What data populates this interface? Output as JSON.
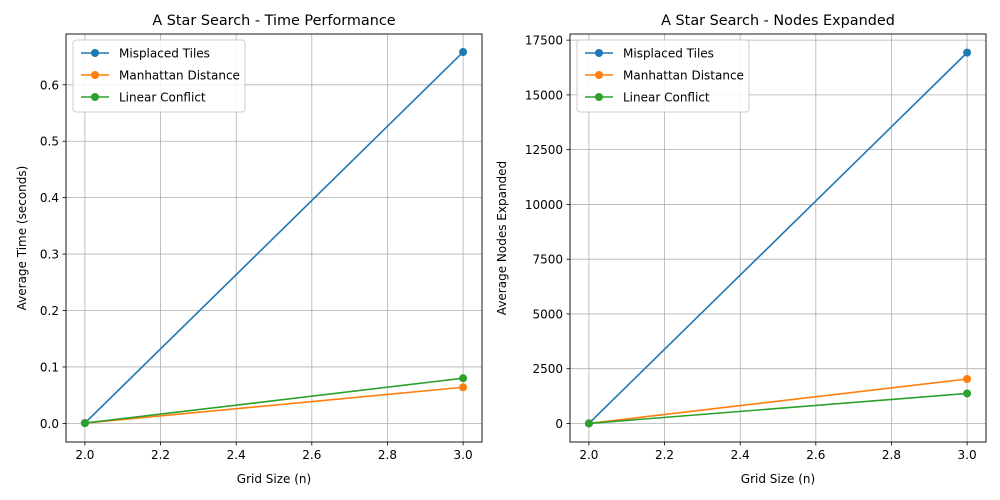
{
  "chart_data": [
    {
      "type": "line",
      "title": "A Star Search - Time Performance",
      "xlabel": "Grid Size (n)",
      "ylabel": "Average Time (seconds)",
      "xlim": [
        1.95,
        3.05
      ],
      "ylim": [
        -0.033,
        0.69
      ],
      "xticks": [
        2.0,
        2.2,
        2.4,
        2.6,
        2.8,
        3.0
      ],
      "xtick_labels": [
        "2.0",
        "2.2",
        "2.4",
        "2.6",
        "2.8",
        "3.0"
      ],
      "yticks": [
        0.0,
        0.1,
        0.2,
        0.3,
        0.4,
        0.5,
        0.6
      ],
      "ytick_labels": [
        "0.0",
        "0.1",
        "0.2",
        "0.3",
        "0.4",
        "0.5",
        "0.6"
      ],
      "grid": true,
      "legend_position": "top-left",
      "x": [
        2,
        3
      ],
      "series": [
        {
          "name": "Misplaced Tiles",
          "values": [
            0.0005,
            0.658
          ],
          "color": "#1f77b4"
        },
        {
          "name": "Manhattan Distance",
          "values": [
            0.0005,
            0.064
          ],
          "color": "#ff7f0e"
        },
        {
          "name": "Linear Conflict",
          "values": [
            0.0005,
            0.08
          ],
          "color": "#2ca02c"
        }
      ]
    },
    {
      "type": "line",
      "title": "A Star Search - Nodes Expanded",
      "xlabel": "Grid Size (n)",
      "ylabel": "Average Nodes Expanded",
      "xlim": [
        1.95,
        3.05
      ],
      "ylim": [
        -846,
        17780
      ],
      "xticks": [
        2.0,
        2.2,
        2.4,
        2.6,
        2.8,
        3.0
      ],
      "xtick_labels": [
        "2.0",
        "2.2",
        "2.4",
        "2.6",
        "2.8",
        "3.0"
      ],
      "yticks": [
        0,
        2500,
        5000,
        7500,
        10000,
        12500,
        15000,
        17500
      ],
      "ytick_labels": [
        "0",
        "2500",
        "5000",
        "7500",
        "10000",
        "12500",
        "15000",
        "17500"
      ],
      "grid": true,
      "legend_position": "top-left",
      "x": [
        2,
        3
      ],
      "series": [
        {
          "name": "Misplaced Tiles",
          "values": [
            3,
            16930
          ],
          "color": "#1f77b4"
        },
        {
          "name": "Manhattan Distance",
          "values": [
            3,
            2030
          ],
          "color": "#ff7f0e"
        },
        {
          "name": "Linear Conflict",
          "values": [
            3,
            1370
          ],
          "color": "#2ca02c"
        }
      ]
    }
  ]
}
